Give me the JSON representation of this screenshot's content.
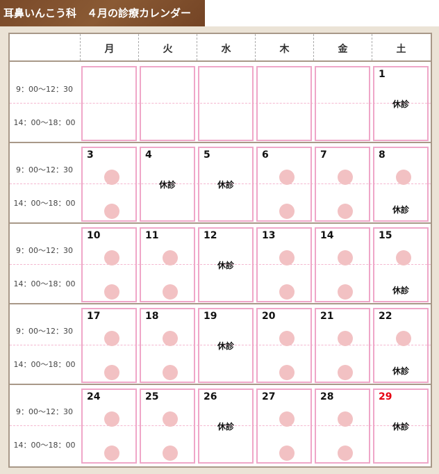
{
  "title": "耳鼻いんこう科　４月の診療カレンダー",
  "colors": {
    "title_bg": "#7a4a2a",
    "cell_border": "#efa6c8",
    "dot": "#f2c1c3",
    "holiday": "#e60012"
  },
  "weekdays": [
    "月",
    "火",
    "水",
    "木",
    "金",
    "土"
  ],
  "times": {
    "am": "9：00～12：30",
    "pm": "14：00～18：00"
  },
  "closed_label": "休診",
  "legend_icons": {
    "open": "pink-circle"
  },
  "weeks": [
    [
      null,
      null,
      null,
      null,
      null,
      {
        "day": "1",
        "status": "closed"
      }
    ],
    [
      {
        "day": "3",
        "status": "open"
      },
      {
        "day": "4",
        "status": "closed"
      },
      {
        "day": "5",
        "status": "closed"
      },
      {
        "day": "6",
        "status": "open"
      },
      {
        "day": "7",
        "status": "open"
      },
      {
        "day": "8",
        "status": "am"
      }
    ],
    [
      {
        "day": "10",
        "status": "open"
      },
      {
        "day": "11",
        "status": "open"
      },
      {
        "day": "12",
        "status": "closed"
      },
      {
        "day": "13",
        "status": "open"
      },
      {
        "day": "14",
        "status": "open"
      },
      {
        "day": "15",
        "status": "am"
      }
    ],
    [
      {
        "day": "17",
        "status": "open"
      },
      {
        "day": "18",
        "status": "open"
      },
      {
        "day": "19",
        "status": "closed"
      },
      {
        "day": "20",
        "status": "open"
      },
      {
        "day": "21",
        "status": "open"
      },
      {
        "day": "22",
        "status": "am"
      }
    ],
    [
      {
        "day": "24",
        "status": "open"
      },
      {
        "day": "25",
        "status": "open"
      },
      {
        "day": "26",
        "status": "closed"
      },
      {
        "day": "27",
        "status": "open"
      },
      {
        "day": "28",
        "status": "open"
      },
      {
        "day": "29",
        "status": "closed",
        "holiday": true
      }
    ]
  ]
}
